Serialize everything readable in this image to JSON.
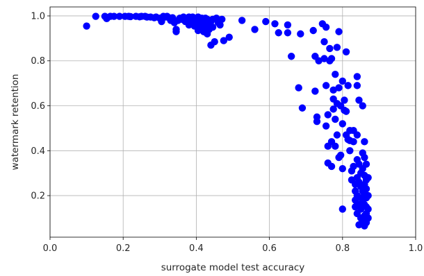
{
  "chart_data": {
    "type": "scatter",
    "title": "",
    "xlabel": "surrogate model test accuracy",
    "ylabel": "watermark retention",
    "xlim": [
      0.0,
      1.0
    ],
    "ylim": [
      0.015,
      1.04
    ],
    "xticks": [
      0.0,
      0.2,
      0.4,
      0.6,
      0.8,
      1.0
    ],
    "xtick_labels": [
      "0.0",
      "0.2",
      "0.4",
      "0.6",
      "0.8",
      "1.0"
    ],
    "yticks": [
      0.2,
      0.4,
      0.6,
      0.8,
      1.0
    ],
    "ytick_labels": [
      "0.2",
      "0.4",
      "0.6",
      "0.8",
      "1.0"
    ],
    "grid": true,
    "legend": false,
    "marker_color": "#0000ff",
    "series": [
      {
        "points": [
          [
            0.1,
            0.955
          ],
          [
            0.125,
            0.998
          ],
          [
            0.15,
            0.998
          ],
          [
            0.155,
            0.988
          ],
          [
            0.165,
            0.998
          ],
          [
            0.175,
            0.998
          ],
          [
            0.19,
            0.998
          ],
          [
            0.205,
            0.998
          ],
          [
            0.215,
            0.998
          ],
          [
            0.22,
            0.997
          ],
          [
            0.235,
            0.998
          ],
          [
            0.245,
            0.996
          ],
          [
            0.25,
            0.998
          ],
          [
            0.26,
            0.998
          ],
          [
            0.265,
            0.995
          ],
          [
            0.275,
            0.995
          ],
          [
            0.285,
            0.992
          ],
          [
            0.29,
            0.995
          ],
          [
            0.3,
            0.99
          ],
          [
            0.305,
            0.975
          ],
          [
            0.31,
            0.998
          ],
          [
            0.315,
            0.995
          ],
          [
            0.32,
            0.998
          ],
          [
            0.325,
            0.992
          ],
          [
            0.33,
            0.98
          ],
          [
            0.335,
            0.992
          ],
          [
            0.34,
            0.97
          ],
          [
            0.345,
            0.94
          ],
          [
            0.345,
            0.93
          ],
          [
            0.35,
            0.98
          ],
          [
            0.355,
            0.99
          ],
          [
            0.36,
            0.985
          ],
          [
            0.365,
            0.995
          ],
          [
            0.37,
            0.975
          ],
          [
            0.375,
            0.99
          ],
          [
            0.38,
            0.96
          ],
          [
            0.38,
            0.995
          ],
          [
            0.385,
            0.985
          ],
          [
            0.39,
            0.97
          ],
          [
            0.39,
            0.995
          ],
          [
            0.395,
            0.955
          ],
          [
            0.4,
            0.99
          ],
          [
            0.4,
            0.975
          ],
          [
            0.405,
            0.935
          ],
          [
            0.405,
            0.995
          ],
          [
            0.41,
            0.98
          ],
          [
            0.41,
            0.96
          ],
          [
            0.415,
            0.945
          ],
          [
            0.415,
            0.99
          ],
          [
            0.42,
            0.93
          ],
          [
            0.42,
            0.97
          ],
          [
            0.425,
            0.99
          ],
          [
            0.425,
            0.95
          ],
          [
            0.43,
            0.92
          ],
          [
            0.43,
            0.985
          ],
          [
            0.435,
            0.96
          ],
          [
            0.435,
            0.94
          ],
          [
            0.44,
            0.87
          ],
          [
            0.44,
            0.975
          ],
          [
            0.445,
            0.985
          ],
          [
            0.445,
            0.95
          ],
          [
            0.45,
            0.885
          ],
          [
            0.455,
            0.99
          ],
          [
            0.46,
            0.97
          ],
          [
            0.465,
            0.96
          ],
          [
            0.47,
            0.985
          ],
          [
            0.475,
            0.89
          ],
          [
            0.49,
            0.905
          ],
          [
            0.525,
            0.98
          ],
          [
            0.56,
            0.94
          ],
          [
            0.59,
            0.975
          ],
          [
            0.615,
            0.965
          ],
          [
            0.625,
            0.925
          ],
          [
            0.65,
            0.96
          ],
          [
            0.65,
            0.925
          ],
          [
            0.66,
            0.82
          ],
          [
            0.68,
            0.68
          ],
          [
            0.685,
            0.92
          ],
          [
            0.69,
            0.59
          ],
          [
            0.72,
            0.935
          ],
          [
            0.725,
            0.82
          ],
          [
            0.725,
            0.665
          ],
          [
            0.73,
            0.53
          ],
          [
            0.73,
            0.55
          ],
          [
            0.735,
            0.8
          ],
          [
            0.745,
            0.965
          ],
          [
            0.75,
            0.885
          ],
          [
            0.75,
            0.81
          ],
          [
            0.755,
            0.95
          ],
          [
            0.755,
            0.69
          ],
          [
            0.755,
            0.51
          ],
          [
            0.76,
            0.42
          ],
          [
            0.76,
            0.345
          ],
          [
            0.76,
            0.56
          ],
          [
            0.765,
            0.8
          ],
          [
            0.765,
            0.855
          ],
          [
            0.77,
            0.44
          ],
          [
            0.77,
            0.33
          ],
          [
            0.77,
            0.81
          ],
          [
            0.775,
            0.67
          ],
          [
            0.775,
            0.63
          ],
          [
            0.775,
            0.585
          ],
          [
            0.78,
            0.74
          ],
          [
            0.78,
            0.54
          ],
          [
            0.78,
            0.42
          ],
          [
            0.785,
            0.86
          ],
          [
            0.785,
            0.61
          ],
          [
            0.785,
            0.47
          ],
          [
            0.79,
            0.93
          ],
          [
            0.79,
            0.68
          ],
          [
            0.79,
            0.37
          ],
          [
            0.795,
            0.38
          ],
          [
            0.795,
            0.6
          ],
          [
            0.8,
            0.32
          ],
          [
            0.8,
            0.52
          ],
          [
            0.8,
            0.71
          ],
          [
            0.805,
            0.58
          ],
          [
            0.805,
            0.625
          ],
          [
            0.81,
            0.84
          ],
          [
            0.81,
            0.47
          ],
          [
            0.81,
            0.575
          ],
          [
            0.815,
            0.45
          ],
          [
            0.815,
            0.69
          ],
          [
            0.82,
            0.49
          ],
          [
            0.82,
            0.445
          ],
          [
            0.82,
            0.4
          ],
          [
            0.825,
            0.27
          ],
          [
            0.825,
            0.31
          ],
          [
            0.83,
            0.49
          ],
          [
            0.83,
            0.44
          ],
          [
            0.83,
            0.33
          ],
          [
            0.835,
            0.25
          ],
          [
            0.835,
            0.22
          ],
          [
            0.835,
            0.18
          ],
          [
            0.835,
            0.15
          ],
          [
            0.84,
            0.73
          ],
          [
            0.84,
            0.69
          ],
          [
            0.84,
            0.47
          ],
          [
            0.84,
            0.36
          ],
          [
            0.84,
            0.28
          ],
          [
            0.84,
            0.2
          ],
          [
            0.84,
            0.12
          ],
          [
            0.845,
            0.625
          ],
          [
            0.845,
            0.34
          ],
          [
            0.845,
            0.26
          ],
          [
            0.845,
            0.16
          ],
          [
            0.845,
            0.07
          ],
          [
            0.85,
            0.3
          ],
          [
            0.85,
            0.24
          ],
          [
            0.85,
            0.19
          ],
          [
            0.85,
            0.14
          ],
          [
            0.85,
            0.1
          ],
          [
            0.855,
            0.6
          ],
          [
            0.855,
            0.39
          ],
          [
            0.855,
            0.32
          ],
          [
            0.855,
            0.22
          ],
          [
            0.855,
            0.17
          ],
          [
            0.855,
            0.09
          ],
          [
            0.86,
            0.44
          ],
          [
            0.86,
            0.37
          ],
          [
            0.86,
            0.29
          ],
          [
            0.86,
            0.25
          ],
          [
            0.86,
            0.21
          ],
          [
            0.86,
            0.16
          ],
          [
            0.86,
            0.11
          ],
          [
            0.86,
            0.065
          ],
          [
            0.865,
            0.34
          ],
          [
            0.865,
            0.27
          ],
          [
            0.865,
            0.23
          ],
          [
            0.865,
            0.19
          ],
          [
            0.865,
            0.15
          ],
          [
            0.865,
            0.12
          ],
          [
            0.865,
            0.08
          ],
          [
            0.87,
            0.28
          ],
          [
            0.87,
            0.2
          ],
          [
            0.87,
            0.14
          ],
          [
            0.87,
            0.1
          ],
          [
            0.8,
            0.14
          ]
        ]
      }
    ]
  }
}
